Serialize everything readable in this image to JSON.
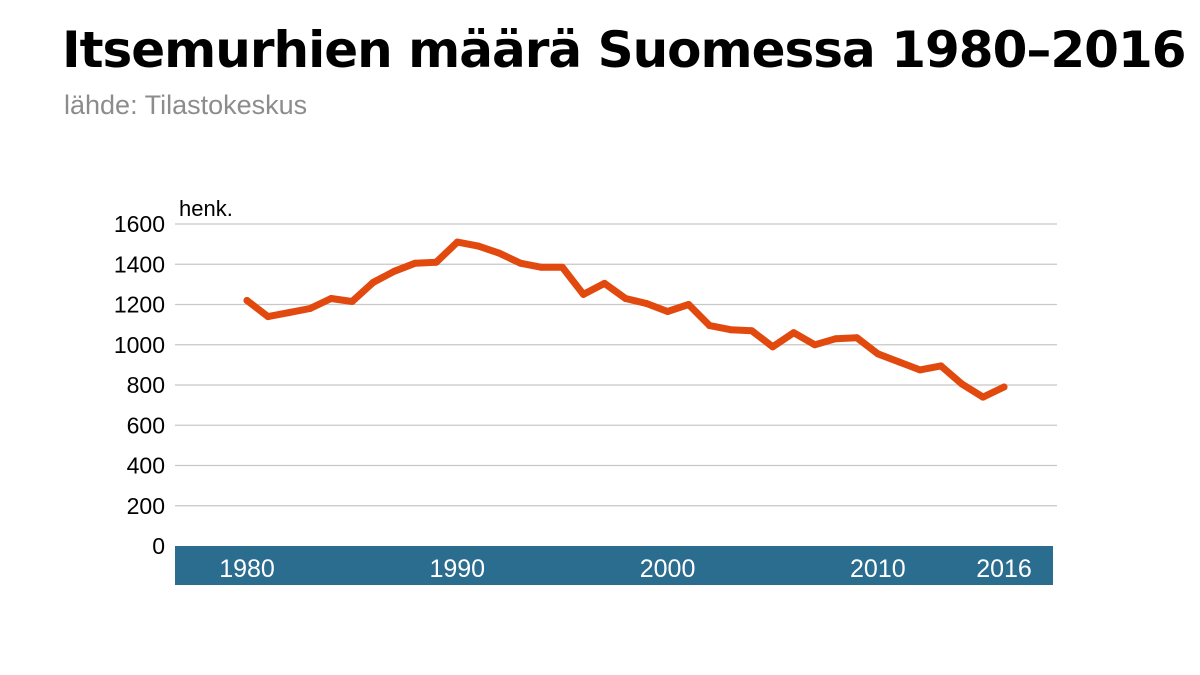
{
  "title": "Itsemurhien määrä Suomessa 1980–2016",
  "subtitle": "lähde: Tilastokeskus",
  "colors": {
    "line": "#e2490f",
    "axis_band": "#2b6d8f",
    "grid": "#c8c8c8",
    "title": "#000000",
    "subtitle": "#8c8c8c"
  },
  "chart_data": {
    "type": "line",
    "title": "Itsemurhien määrä Suomessa 1980–2016",
    "ylabel": "henk.",
    "xlabel": "",
    "ylim": [
      0,
      1600
    ],
    "y_ticks": [
      0,
      200,
      400,
      600,
      800,
      1000,
      1200,
      1400,
      1600
    ],
    "x_tick_labels": [
      "1980",
      "1990",
      "2000",
      "2010",
      "2016"
    ],
    "grid": true,
    "x": [
      1980,
      1981,
      1982,
      1983,
      1984,
      1985,
      1986,
      1987,
      1988,
      1989,
      1990,
      1991,
      1992,
      1993,
      1994,
      1995,
      1996,
      1997,
      1998,
      1999,
      2000,
      2001,
      2002,
      2003,
      2004,
      2005,
      2006,
      2007,
      2008,
      2009,
      2010,
      2011,
      2012,
      2013,
      2014,
      2015,
      2016
    ],
    "values": [
      1220,
      1140,
      1160,
      1180,
      1230,
      1215,
      1310,
      1365,
      1405,
      1410,
      1510,
      1490,
      1455,
      1405,
      1385,
      1385,
      1250,
      1305,
      1230,
      1205,
      1165,
      1200,
      1095,
      1075,
      1070,
      990,
      1060,
      1000,
      1030,
      1035,
      955,
      915,
      875,
      895,
      805,
      740,
      790
    ]
  }
}
